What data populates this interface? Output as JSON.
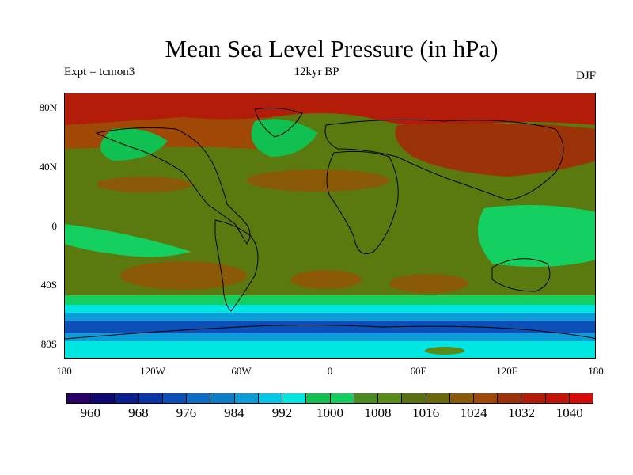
{
  "title": "Mean Sea Level Pressure (in hPa)",
  "subtitle_left": "Expt = tcmon3",
  "subtitle_center": "12kyr BP",
  "subtitle_right": "DJF",
  "lat_labels": [
    "80N",
    "40N",
    "0",
    "40S",
    "80S"
  ],
  "lon_labels": [
    "180",
    "120W",
    "60W",
    "0",
    "60E",
    "120E",
    "180"
  ],
  "colorbar": {
    "labels": [
      "960",
      "968",
      "976",
      "984",
      "992",
      "1000",
      "1008",
      "1016",
      "1024",
      "1032",
      "1040"
    ],
    "colors": [
      "#2a0068",
      "#0e0870",
      "#0a1f8c",
      "#0a35a8",
      "#0a50b8",
      "#0c6cc6",
      "#0a7fc8",
      "#0a9dd8",
      "#00c8e8",
      "#00e6e0",
      "#10c050",
      "#14d060",
      "#4a8a20",
      "#5a8a18",
      "#5a7010",
      "#6a6808",
      "#8a5a06",
      "#a04806",
      "#9c3208",
      "#b41c0a",
      "#c4140a",
      "#d80a0a"
    ]
  },
  "map": {
    "background_color": "#5a7a10",
    "continent_outline_color": "#000000"
  }
}
